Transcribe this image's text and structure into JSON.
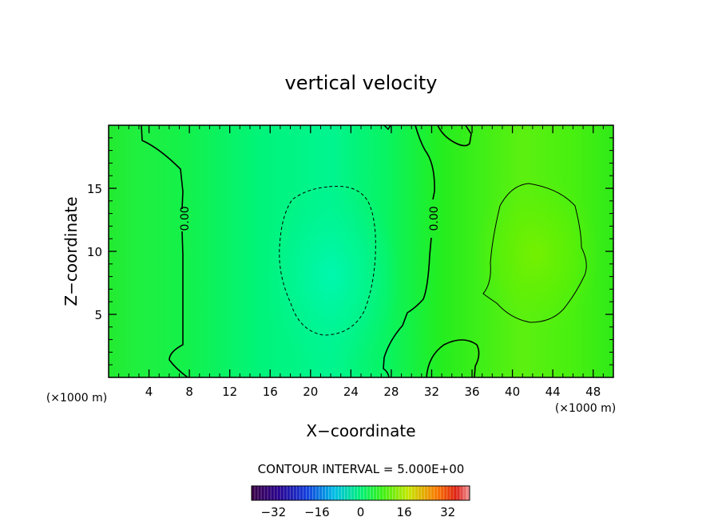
{
  "chart_data": {
    "type": "heatmap",
    "title": "vertical velocity",
    "xlabel": "X−coordinate",
    "ylabel": "Z−coordinate",
    "x_unit": "(×1000 m)",
    "y_unit": "(×1000 m)",
    "xlim": [
      0,
      50
    ],
    "ylim": [
      0,
      20
    ],
    "x_ticks": [
      4,
      8,
      12,
      16,
      20,
      24,
      28,
      32,
      36,
      40,
      44,
      48
    ],
    "y_ticks": [
      5,
      10,
      15
    ],
    "contour_interval_text": "CONTOUR INTERVAL = 5.000E+00",
    "contour_labels": [
      {
        "text": "0.00",
        "x": 7.5,
        "z": 12.6
      },
      {
        "text": "0.00",
        "x": 32.2,
        "z": 12.6
      }
    ],
    "features": [
      {
        "name": "negative-updraft-core",
        "center_x": 22,
        "center_z": 7,
        "min_value": -3,
        "contour_level": -1.25,
        "line_style": "dashed"
      },
      {
        "name": "positive-updraft-core",
        "center_x": 42,
        "center_z": 9.5,
        "max_value": 3,
        "contour_level": 1.25,
        "line_style": "solid"
      }
    ],
    "colorbar": {
      "range": [
        -40,
        40
      ],
      "ticks": [
        -32,
        -16,
        0,
        16,
        32
      ],
      "tick_labels": [
        "−32",
        "−16",
        "0",
        "16",
        "32"
      ]
    }
  }
}
